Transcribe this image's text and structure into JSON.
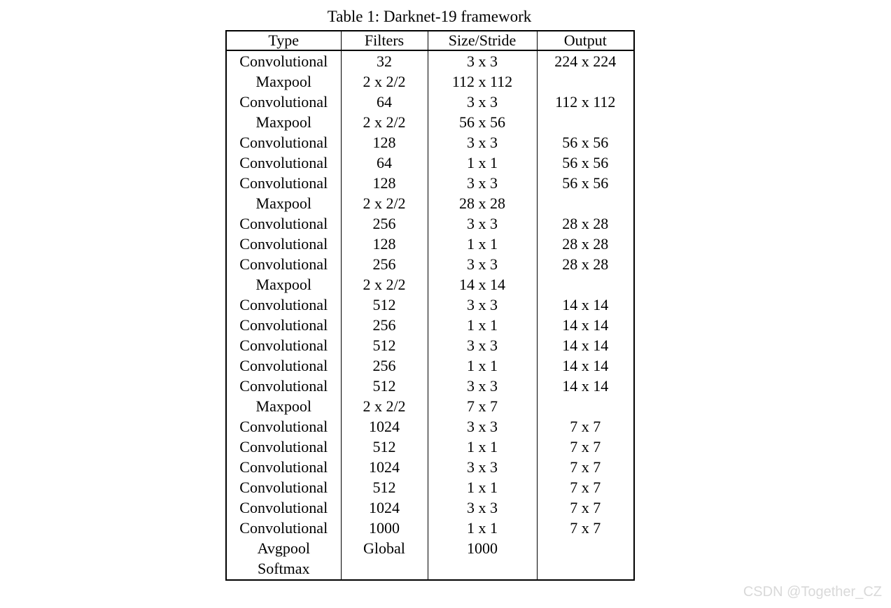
{
  "caption": "Table 1: Darknet-19 framework",
  "table": {
    "headers": [
      "Type",
      "Filters",
      "Size/Stride",
      "Output"
    ],
    "rows": [
      [
        "Convolutional",
        "32",
        "3 x 3",
        "224 x 224"
      ],
      [
        "Maxpool",
        "2 x 2/2",
        "112 x 112",
        ""
      ],
      [
        "Convolutional",
        "64",
        "3 x 3",
        "112 x 112"
      ],
      [
        "Maxpool",
        "2 x 2/2",
        "56 x 56",
        ""
      ],
      [
        "Convolutional",
        "128",
        "3 x 3",
        "56 x 56"
      ],
      [
        "Convolutional",
        "64",
        "1 x 1",
        "56 x 56"
      ],
      [
        "Convolutional",
        "128",
        "3 x 3",
        "56 x 56"
      ],
      [
        "Maxpool",
        "2 x 2/2",
        "28 x 28",
        ""
      ],
      [
        "Convolutional",
        "256",
        "3 x 3",
        "28 x 28"
      ],
      [
        "Convolutional",
        "128",
        "1 x 1",
        "28 x 28"
      ],
      [
        "Convolutional",
        "256",
        "3 x 3",
        "28 x 28"
      ],
      [
        "Maxpool",
        "2 x 2/2",
        "14 x 14",
        ""
      ],
      [
        "Convolutional",
        "512",
        "3 x 3",
        "14 x 14"
      ],
      [
        "Convolutional",
        "256",
        "1 x 1",
        "14 x 14"
      ],
      [
        "Convolutional",
        "512",
        "3 x 3",
        "14 x 14"
      ],
      [
        "Convolutional",
        "256",
        "1 x 1",
        "14 x 14"
      ],
      [
        "Convolutional",
        "512",
        "3 x 3",
        "14 x 14"
      ],
      [
        "Maxpool",
        "2 x 2/2",
        "7 x 7",
        ""
      ],
      [
        "Convolutional",
        "1024",
        "3 x 3",
        "7 x 7"
      ],
      [
        "Convolutional",
        "512",
        "1 x 1",
        "7 x 7"
      ],
      [
        "Convolutional",
        "1024",
        "3 x 3",
        "7 x 7"
      ],
      [
        "Convolutional",
        "512",
        "1 x 1",
        "7 x 7"
      ],
      [
        "Convolutional",
        "1024",
        "3 x 3",
        "7 x 7"
      ],
      [
        "Convolutional",
        "1000",
        "1 x 1",
        "7 x 7"
      ],
      [
        "Avgpool",
        "Global",
        "1000",
        ""
      ],
      [
        "Softmax",
        "",
        "",
        ""
      ]
    ]
  },
  "watermark": "CSDN @Together_CZ",
  "colors": {
    "background": "#ffffff",
    "text": "#000000",
    "border": "#000000",
    "watermark": "#d9d9d9"
  }
}
